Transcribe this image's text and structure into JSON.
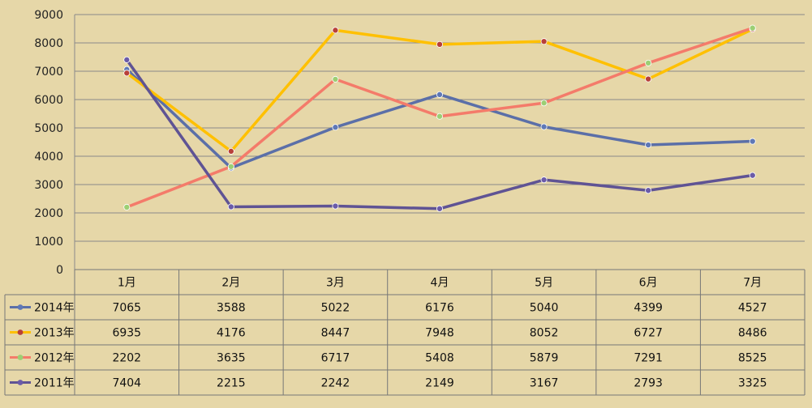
{
  "chart_data": {
    "type": "line",
    "categories": [
      "1月",
      "2月",
      "3月",
      "4月",
      "5月",
      "6月",
      "7月"
    ],
    "ylim": [
      0,
      9000
    ],
    "yticks": [
      0,
      1000,
      2000,
      3000,
      4000,
      5000,
      6000,
      7000,
      8000,
      9000
    ],
    "grid": true,
    "legend": "table",
    "series": [
      {
        "name": "2014年",
        "color": "#5b6fa8",
        "marker_color": "#5f78b6",
        "values": [
          7065,
          3588,
          5022,
          6176,
          5040,
          4399,
          4527
        ]
      },
      {
        "name": "2013年",
        "color": "#ffc000",
        "marker_color": "#b8403a",
        "values": [
          6935,
          4176,
          8447,
          7948,
          8052,
          6727,
          8486
        ]
      },
      {
        "name": "2012年",
        "color": "#f47b6a",
        "marker_color": "#9ccf74",
        "values": [
          2202,
          3635,
          6717,
          5408,
          5879,
          7291,
          8525
        ]
      },
      {
        "name": "2011年",
        "color": "#5f5394",
        "marker_color": "#6b5ba8",
        "values": [
          7404,
          2215,
          2242,
          2149,
          3167,
          2793,
          3325
        ]
      }
    ]
  }
}
